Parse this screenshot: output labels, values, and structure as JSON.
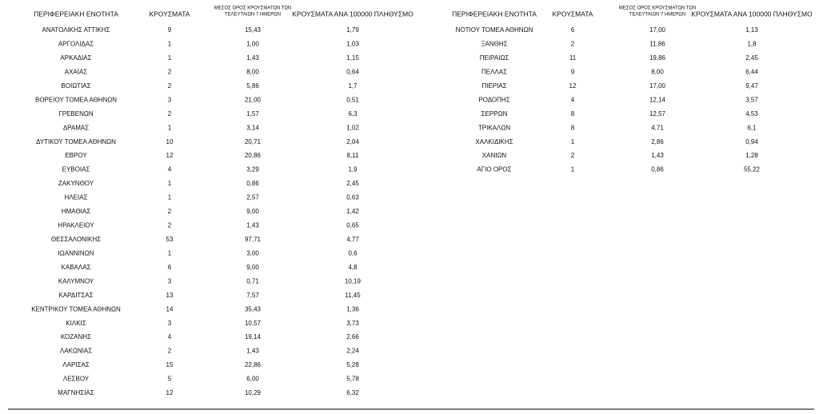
{
  "tables": [
    {
      "header": [
        "ΠΕΡΙΦΕΡΕΙΑΚΗ ΕΝΟΤΗΤΑ",
        "ΚΡΟΥΣΜΑΤΑ",
        [
          "ΜΕΣΟΣ ΟΡΟΣ ΚΡΟΥΣΜΑΤΩΝ ΤΩΝ",
          "ΤΕΛΕΥΤΑΙΩΝ 7 ΗΜΕΡΩΝ"
        ],
        "ΚΡΟΥΣΜΑΤΑ ΑΝΑ 100000 ΠΛΗΘΥΣΜΟ"
      ],
      "rows": [
        [
          "ΑΝΑΤΟΛΙΚΗΣ ΑΤΤΙΚΗΣ",
          "9",
          "15,43",
          "1,79"
        ],
        [
          "ΑΡΓΟΛΙΔΑΣ",
          "1",
          "1,00",
          "1,03"
        ],
        [
          "ΑΡΚΑΔΙΑΣ",
          "1",
          "1,43",
          "1,15"
        ],
        [
          "ΑΧΑΪΑΣ",
          "2",
          "8,00",
          "0,64"
        ],
        [
          "ΒΟΙΩΤΙΑΣ",
          "2",
          "5,86",
          "1,7"
        ],
        [
          "ΒΟΡΕΙΟΥ ΤΟΜΕΑ ΑΘΗΝΩΝ",
          "3",
          "21,00",
          "0,51"
        ],
        [
          "ΓΡΕΒΕΝΩΝ",
          "2",
          "1,57",
          "6,3"
        ],
        [
          "ΔΡΑΜΑΣ",
          "1",
          "3,14",
          "1,02"
        ],
        [
          "ΔΥΤΙΚΟΥ ΤΟΜΕΑ ΑΘΗΝΩΝ",
          "10",
          "20,71",
          "2,04"
        ],
        [
          "ΕΒΡΟΥ",
          "12",
          "20,86",
          "8,11"
        ],
        [
          "ΕΥΒΟΙΑΣ",
          "4",
          "3,29",
          "1,9"
        ],
        [
          "ΖΑΚΥΝΘΟΥ",
          "1",
          "0,86",
          "2,45"
        ],
        [
          "ΗΛΕΙΑΣ",
          "1",
          "2,57",
          "0,63"
        ],
        [
          "ΗΜΑΘΙΑΣ",
          "2",
          "9,00",
          "1,42"
        ],
        [
          "ΗΡΑΚΛΕΙΟΥ",
          "2",
          "1,43",
          "0,65"
        ],
        [
          "ΘΕΣΣΑΛΟΝΙΚΗΣ",
          "53",
          "97,71",
          "4,77"
        ],
        [
          "ΙΩΑΝΝΙΝΩΝ",
          "1",
          "3,00",
          "0,6"
        ],
        [
          "ΚΑΒΑΛΑΣ",
          "6",
          "9,00",
          "4,8"
        ],
        [
          "ΚΑΛΥΜΝΟΥ",
          "3",
          "0,71",
          "10,19"
        ],
        [
          "ΚΑΡΔΙΤΣΑΣ",
          "13",
          "7,57",
          "11,45"
        ],
        [
          "ΚΕΝΤΡΙΚΟΥ ΤΟΜΕΑ ΑΘΗΝΩΝ",
          "14",
          "35,43",
          "1,36"
        ],
        [
          "ΚΙΛΚΙΣ",
          "3",
          "10,57",
          "3,73"
        ],
        [
          "ΚΟΖΑΝΗΣ",
          "4",
          "19,14",
          "2,66"
        ],
        [
          "ΛΑΚΩΝΙΑΣ",
          "2",
          "1,43",
          "2,24"
        ],
        [
          "ΛΑΡΙΣΑΣ",
          "15",
          "22,86",
          "5,28"
        ],
        [
          "ΛΕΣΒΟΥ",
          "5",
          "6,00",
          "5,78"
        ],
        [
          "ΜΑΓΝΗΣΙΑΣ",
          "12",
          "10,29",
          "6,32"
        ]
      ]
    },
    {
      "header": [
        "ΠΕΡΙΦΕΡΕΙΑΚΗ ΕΝΟΤΗΤΑ",
        "ΚΡΟΥΣΜΑΤΑ",
        [
          "ΜΕΣΟΣ ΟΡΟΣ ΚΡΟΥΣΜΑΤΩΝ ΤΩΝ",
          "ΤΕΛΕΥΤΑΙΩΝ 7 ΗΜΕΡΩΝ"
        ],
        "ΚΡΟΥΣΜΑΤΑ ΑΝΑ 100000 ΠΛΗΘΥΣΜΟ"
      ],
      "rows": [
        [
          "ΝΟΤΙΟΥ ΤΟΜΕΑ ΑΘΗΝΩΝ",
          "6",
          "17,00",
          "1,13"
        ],
        [
          "ΞΑΝΘΗΣ",
          "2",
          "11,86",
          "1,8"
        ],
        [
          "ΠΕΙΡΑΙΩΣ",
          "11",
          "19,86",
          "2,45"
        ],
        [
          "ΠΕΛΛΑΣ",
          "9",
          "8,00",
          "6,44"
        ],
        [
          "ΠΙΕΡΙΑΣ",
          "12",
          "17,00",
          "9,47"
        ],
        [
          "ΡΟΔΟΠΗΣ",
          "4",
          "12,14",
          "3,57"
        ],
        [
          "ΣΕΡΡΩΝ",
          "8",
          "12,57",
          "4,53"
        ],
        [
          "ΤΡΙΚΑΛΩΝ",
          "8",
          "4,71",
          "6,1"
        ],
        [
          "ΧΑΛΚΙΔΙΚΗΣ",
          "1",
          "2,86",
          "0,94"
        ],
        [
          "ΧΑΝΙΩΝ",
          "2",
          "1,43",
          "1,28"
        ],
        [
          "ΑΓΙΟ ΟΡΟΣ",
          "1",
          "0,86",
          "55,22"
        ]
      ]
    }
  ]
}
